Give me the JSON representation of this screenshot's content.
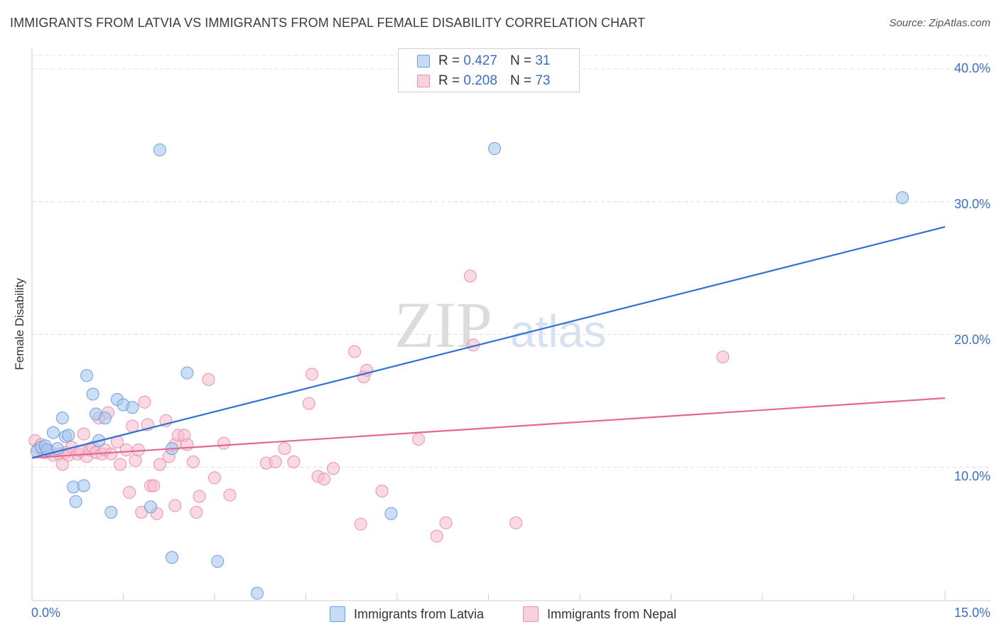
{
  "title": "IMMIGRANTS FROM LATVIA VS IMMIGRANTS FROM NEPAL FEMALE DISABILITY CORRELATION CHART",
  "source": "Source: ZipAtlas.com",
  "watermark": {
    "zip": "ZIP",
    "atlas": "atlas"
  },
  "legend": {
    "latvia": {
      "r_label": "R =",
      "r_value": "0.427",
      "n_label": "N =",
      "n_value": "31"
    },
    "nepal": {
      "r_label": "R =",
      "r_value": "0.208",
      "n_label": "N =",
      "n_value": "73"
    }
  },
  "chart_data": {
    "type": "scatter",
    "ylabel": "Female Disability",
    "xlim": [
      0,
      15
    ],
    "ylim": [
      0,
      40
    ],
    "x_tick_labels": [
      "0.0%",
      "15.0%"
    ],
    "y_ticks": [
      10,
      20,
      30,
      40
    ],
    "y_tick_labels": [
      "10.0%",
      "20.0%",
      "30.0%",
      "40.0%"
    ],
    "colors": {
      "latvia_fill": "#a9c8f0",
      "latvia_edge": "#6e9fdd",
      "latvia_line": "#2f72d0",
      "nepal_fill": "#f7b9cd",
      "nepal_edge": "#e892ae",
      "nepal_line": "#e36893"
    },
    "series": [
      {
        "name": "Immigrants from Latvia",
        "trend": {
          "x": [
            0,
            15
          ],
          "y": [
            10.7,
            28.1
          ]
        },
        "points": [
          [
            0.08,
            11.2
          ],
          [
            0.15,
            11.5
          ],
          [
            0.22,
            11.6
          ],
          [
            0.25,
            11.3
          ],
          [
            0.35,
            12.6
          ],
          [
            0.42,
            11.4
          ],
          [
            0.5,
            13.7
          ],
          [
            0.55,
            12.3
          ],
          [
            0.6,
            12.4
          ],
          [
            0.68,
            8.5
          ],
          [
            0.72,
            7.4
          ],
          [
            0.85,
            8.6
          ],
          [
            0.9,
            16.9
          ],
          [
            1.0,
            15.5
          ],
          [
            1.05,
            14.0
          ],
          [
            1.1,
            12.0
          ],
          [
            1.2,
            13.7
          ],
          [
            1.3,
            6.6
          ],
          [
            1.4,
            15.1
          ],
          [
            1.5,
            14.7
          ],
          [
            1.65,
            14.5
          ],
          [
            1.95,
            7.0
          ],
          [
            2.1,
            33.9
          ],
          [
            2.3,
            3.2
          ],
          [
            2.3,
            11.4
          ],
          [
            2.55,
            17.1
          ],
          [
            3.05,
            2.9
          ],
          [
            3.7,
            0.5
          ],
          [
            5.9,
            6.5
          ],
          [
            7.6,
            34.0
          ],
          [
            14.3,
            30.3
          ]
        ]
      },
      {
        "name": "Immigrants from Nepal",
        "trend": {
          "x": [
            0,
            15
          ],
          "y": [
            10.7,
            15.2
          ]
        },
        "points": [
          [
            0.05,
            12.0
          ],
          [
            0.1,
            11.4
          ],
          [
            0.15,
            11.7
          ],
          [
            0.2,
            11.1
          ],
          [
            0.25,
            11.3
          ],
          [
            0.3,
            11.2
          ],
          [
            0.35,
            10.9
          ],
          [
            0.45,
            11.0
          ],
          [
            0.5,
            10.2
          ],
          [
            0.55,
            11.1
          ],
          [
            0.6,
            10.9
          ],
          [
            0.65,
            11.5
          ],
          [
            0.75,
            11.0
          ],
          [
            0.8,
            11.2
          ],
          [
            0.85,
            12.5
          ],
          [
            0.9,
            10.8
          ],
          [
            0.95,
            11.3
          ],
          [
            1.0,
            11.5
          ],
          [
            1.05,
            11.1
          ],
          [
            1.1,
            13.7
          ],
          [
            1.15,
            11.0
          ],
          [
            1.2,
            11.3
          ],
          [
            1.25,
            14.1
          ],
          [
            1.3,
            11.0
          ],
          [
            1.4,
            11.9
          ],
          [
            1.45,
            10.2
          ],
          [
            1.55,
            11.3
          ],
          [
            1.6,
            8.1
          ],
          [
            1.65,
            13.1
          ],
          [
            1.7,
            10.5
          ],
          [
            1.75,
            11.3
          ],
          [
            1.8,
            6.6
          ],
          [
            1.85,
            14.9
          ],
          [
            1.9,
            13.2
          ],
          [
            1.95,
            8.6
          ],
          [
            2.0,
            8.6
          ],
          [
            2.05,
            6.5
          ],
          [
            2.1,
            10.2
          ],
          [
            2.2,
            13.5
          ],
          [
            2.25,
            10.8
          ],
          [
            2.35,
            11.7
          ],
          [
            2.35,
            7.1
          ],
          [
            2.4,
            12.4
          ],
          [
            2.5,
            12.4
          ],
          [
            2.55,
            11.7
          ],
          [
            2.65,
            10.4
          ],
          [
            2.7,
            6.6
          ],
          [
            2.75,
            7.8
          ],
          [
            2.9,
            16.6
          ],
          [
            3.0,
            9.2
          ],
          [
            3.15,
            11.8
          ],
          [
            3.25,
            7.9
          ],
          [
            3.85,
            10.3
          ],
          [
            4.0,
            10.4
          ],
          [
            4.15,
            11.4
          ],
          [
            4.3,
            10.4
          ],
          [
            4.55,
            14.8
          ],
          [
            4.6,
            17.0
          ],
          [
            4.7,
            9.3
          ],
          [
            4.8,
            9.1
          ],
          [
            4.95,
            9.9
          ],
          [
            5.3,
            18.7
          ],
          [
            5.4,
            5.7
          ],
          [
            5.45,
            16.8
          ],
          [
            5.5,
            17.3
          ],
          [
            5.75,
            8.2
          ],
          [
            6.35,
            12.1
          ],
          [
            6.65,
            4.8
          ],
          [
            6.8,
            5.8
          ],
          [
            7.2,
            24.4
          ],
          [
            7.25,
            19.2
          ],
          [
            7.95,
            5.8
          ],
          [
            11.35,
            18.3
          ]
        ]
      }
    ]
  }
}
